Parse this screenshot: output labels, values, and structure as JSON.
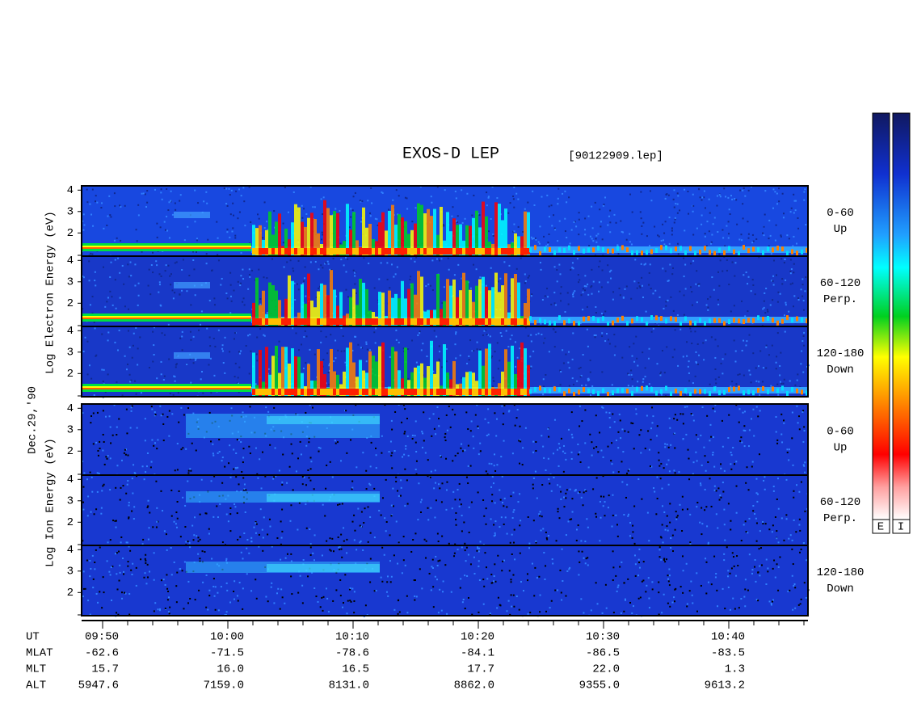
{
  "title": "EXOS-D LEP",
  "file": "[90122909.lep]",
  "date": "Dec.29,'90",
  "electron_label": "Log Electron Energy (eV)",
  "ion_label": "Log Ion Energy (eV)",
  "yticks": [
    2,
    3,
    4
  ],
  "panels": [
    {
      "angle": "0-60",
      "dir": "Up"
    },
    {
      "angle": "60-120",
      "dir": "Perp."
    },
    {
      "angle": "120-180",
      "dir": "Down"
    },
    {
      "angle": "0-60",
      "dir": "Up"
    },
    {
      "angle": "60-120",
      "dir": "Perp."
    },
    {
      "angle": "120-180",
      "dir": "Down"
    }
  ],
  "colorbar_labels": [
    "E",
    "I"
  ],
  "table": {
    "row_labels": [
      "UT",
      "MLAT",
      "MLT",
      "ALT"
    ],
    "columns": [
      [
        "09:50",
        "-62.6",
        "15.7",
        "5947.6"
      ],
      [
        "10:00",
        "-71.5",
        "16.0",
        "7159.0"
      ],
      [
        "10:10",
        "-78.6",
        "16.5",
        "8131.0"
      ],
      [
        "10:20",
        "-84.1",
        "17.7",
        "8862.0"
      ],
      [
        "10:30",
        "-86.5",
        "22.0",
        "9355.0"
      ],
      [
        "10:40",
        "-83.5",
        "1.3",
        "9613.2"
      ]
    ]
  }
}
